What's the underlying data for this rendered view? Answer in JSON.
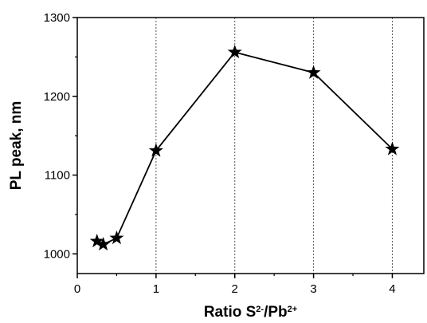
{
  "chart_data": {
    "type": "line",
    "title": "",
    "xlabel": {
      "parts": [
        {
          "text": "Ratio S",
          "sup": false
        },
        {
          "text": "2-",
          "sup": true
        },
        {
          "text": "/Pb",
          "sup": false
        },
        {
          "text": "2+",
          "sup": true
        }
      ]
    },
    "ylabel": "PL peak, nm",
    "xlim": [
      0,
      4.4
    ],
    "ylim": [
      975,
      1300
    ],
    "x_ticks": [
      0,
      1,
      2,
      3,
      4
    ],
    "y_ticks": [
      1000,
      1100,
      1200,
      1300
    ],
    "vertical_gridlines": [
      1,
      2,
      3,
      4
    ],
    "marker": "star",
    "color": "#000000",
    "series": [
      {
        "x": [
          0.25,
          0.33,
          0.5,
          1,
          2,
          3,
          4
        ],
        "y": [
          1016,
          1012,
          1020,
          1131,
          1256,
          1230,
          1133
        ]
      }
    ]
  }
}
